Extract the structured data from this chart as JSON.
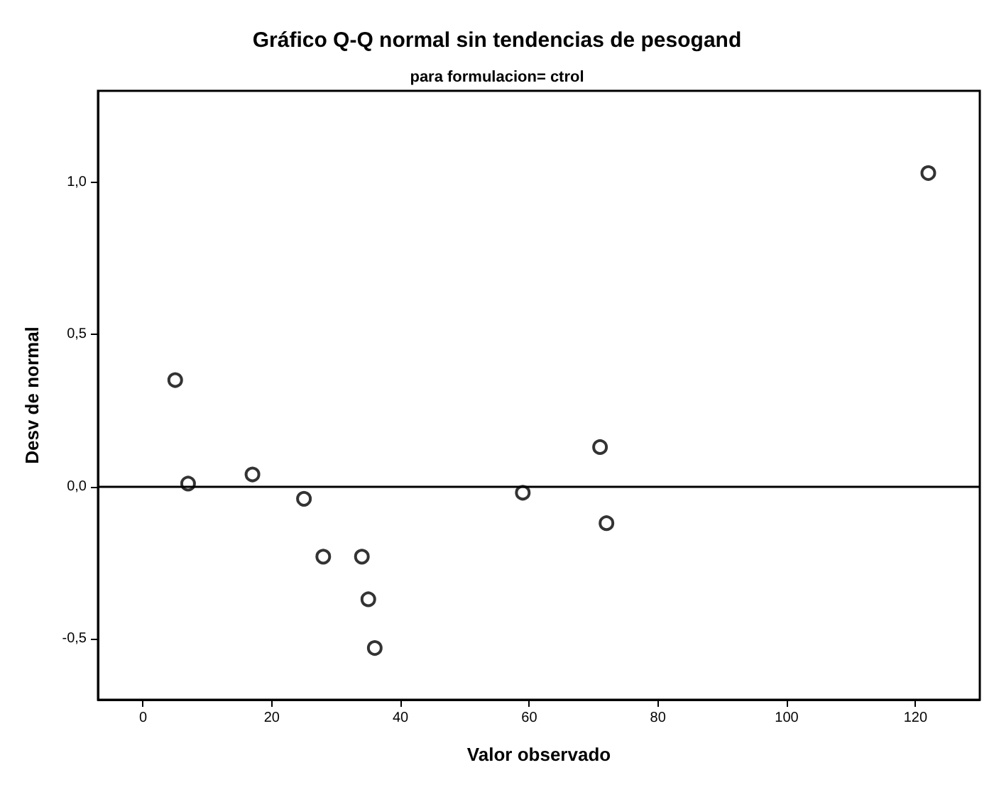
{
  "chart_data": {
    "type": "scatter",
    "title": "Gráfico Q-Q normal sin tendencias de pesogand",
    "subtitle": "para formulacion= ctrol",
    "xlabel": "Valor observado",
    "ylabel": "Desv de normal",
    "x": [
      5,
      7,
      17,
      25,
      28,
      34,
      35,
      36,
      59,
      71,
      72,
      122
    ],
    "values": [
      0.35,
      0.01,
      0.04,
      -0.04,
      -0.23,
      -0.23,
      -0.37,
      -0.53,
      -0.02,
      0.13,
      -0.12,
      1.03
    ],
    "color": "#000000",
    "marker": "circle",
    "xlim": [
      -7,
      130
    ],
    "xticks": [
      0,
      20,
      40,
      60,
      80,
      100,
      120
    ],
    "ylim": [
      -0.7,
      1.3
    ],
    "yticks": [
      {
        "value": -0.5,
        "label": "-0,5"
      },
      {
        "value": 0,
        "label": "0,0"
      },
      {
        "value": 0.5,
        "label": "0,5"
      },
      {
        "value": 1,
        "label": "1,0"
      }
    ],
    "ref_lines": [
      {
        "axis": "y",
        "value": 0,
        "color": "#000000"
      }
    ],
    "grid": false
  }
}
